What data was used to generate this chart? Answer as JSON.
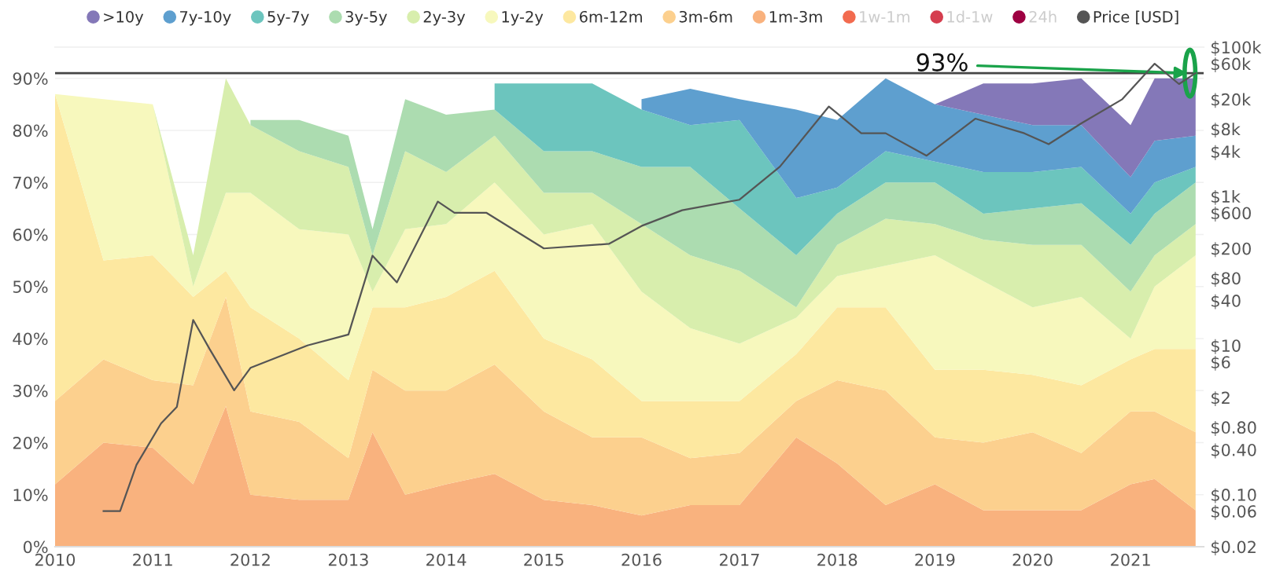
{
  "chart_data": {
    "type": "area",
    "stacked": true,
    "x": [
      "2010-01",
      "2010-07",
      "2011-01",
      "2011-06",
      "2011-10",
      "2012-01",
      "2012-07",
      "2013-01",
      "2013-04",
      "2013-08",
      "2014-01",
      "2014-07",
      "2015-01",
      "2015-07",
      "2016-01",
      "2016-07",
      "2017-01",
      "2017-08",
      "2018-01",
      "2018-07",
      "2019-01",
      "2019-07",
      "2020-01",
      "2020-07",
      "2021-01",
      "2021-04",
      "2021-09"
    ],
    "series": [
      {
        "name": ">10y",
        "color": "#8478b8",
        "values": [
          null,
          null,
          null,
          null,
          null,
          null,
          null,
          null,
          null,
          null,
          null,
          null,
          null,
          null,
          null,
          null,
          null,
          null,
          null,
          null,
          0,
          6,
          8,
          9,
          10,
          12,
          11
        ]
      },
      {
        "name": "7y-10y",
        "color": "#5e9fcf",
        "values": [
          null,
          null,
          null,
          null,
          null,
          null,
          null,
          null,
          null,
          null,
          null,
          null,
          null,
          null,
          2,
          7,
          4,
          17,
          13,
          14,
          11,
          11,
          9,
          8,
          7,
          8,
          6
        ]
      },
      {
        "name": "5y-7y",
        "color": "#6cc5be",
        "values": [
          null,
          null,
          null,
          null,
          null,
          null,
          null,
          null,
          null,
          null,
          null,
          5,
          13,
          13,
          11,
          8,
          17,
          11,
          5,
          6,
          4,
          8,
          7,
          7,
          6,
          6,
          3
        ]
      },
      {
        "name": "3y-5y",
        "color": "#acdcb0",
        "values": [
          null,
          null,
          null,
          null,
          null,
          1,
          6,
          6,
          5,
          10,
          11,
          5,
          8,
          8,
          11,
          17,
          12,
          10,
          6,
          7,
          8,
          5,
          7,
          8,
          9,
          8,
          8
        ]
      },
      {
        "name": "2y-3y",
        "color": "#d8eead",
        "values": [
          null,
          null,
          0,
          6,
          22,
          13,
          15,
          13,
          7,
          15,
          10,
          9,
          8,
          6,
          13,
          14,
          14,
          2,
          6,
          9,
          6,
          8,
          12,
          10,
          9,
          6,
          6
        ]
      },
      {
        "name": "1y-2y",
        "color": "#f7f8bd",
        "values": [
          0,
          31,
          29,
          2,
          15,
          22,
          21,
          28,
          3,
          15,
          14,
          17,
          20,
          26,
          21,
          14,
          11,
          7,
          6,
          8,
          22,
          17,
          13,
          17,
          4,
          12,
          18
        ]
      },
      {
        "name": "6m-12m",
        "color": "#fde8a0",
        "values": [
          59,
          19,
          24,
          17,
          5,
          20,
          16,
          15,
          12,
          16,
          18,
          18,
          14,
          15,
          7,
          11,
          10,
          9,
          14,
          16,
          13,
          14,
          11,
          13,
          10,
          12,
          16
        ]
      },
      {
        "name": "3m-6m",
        "color": "#fcd08e",
        "values": [
          16,
          16,
          13,
          19,
          21,
          16,
          15,
          8,
          12,
          20,
          18,
          21,
          17,
          13,
          15,
          9,
          10,
          7,
          16,
          22,
          9,
          13,
          15,
          11,
          14,
          13,
          15
        ]
      },
      {
        "name": "1m-3m",
        "color": "#f9b27e",
        "values": [
          12,
          20,
          19,
          12,
          27,
          10,
          9,
          9,
          22,
          10,
          12,
          14,
          9,
          8,
          6,
          8,
          8,
          21,
          16,
          8,
          12,
          7,
          7,
          7,
          12,
          13,
          7
        ]
      },
      {
        "name": "1w-1m",
        "color": "#f26b4f",
        "values": [
          null,
          null,
          null,
          null,
          null,
          null,
          null,
          null,
          null,
          null,
          null,
          null,
          null,
          null,
          null,
          null,
          null,
          null,
          null,
          null,
          null,
          null,
          null,
          null,
          null,
          null,
          null
        ]
      },
      {
        "name": "1d-1w",
        "color": "#d53e4f",
        "values": [
          null,
          null,
          null,
          null,
          null,
          null,
          null,
          null,
          null,
          null,
          null,
          null,
          null,
          null,
          null,
          null,
          null,
          null,
          null,
          null,
          null,
          null,
          null,
          null,
          null,
          null,
          null
        ]
      },
      {
        "name": "24h",
        "color": "#9e0142",
        "values": [
          null,
          null,
          null,
          null,
          null,
          null,
          null,
          null,
          null,
          null,
          null,
          null,
          null,
          null,
          null,
          null,
          null,
          null,
          null,
          null,
          null,
          null,
          null,
          null,
          null,
          null,
          null
        ]
      },
      {
        "name": "Price [USD]",
        "type": "line",
        "axis": "y2",
        "color": "#555555",
        "x": [
          "2010-07",
          "2010-09",
          "2010-11",
          "2011-02",
          "2011-04",
          "2011-06",
          "2011-08",
          "2011-11",
          "2012-01",
          "2012-08",
          "2013-01",
          "2013-04",
          "2013-07",
          "2013-12",
          "2014-02",
          "2014-06",
          "2015-01",
          "2015-09",
          "2016-01",
          "2016-06",
          "2017-01",
          "2017-06",
          "2017-12",
          "2018-04",
          "2018-07",
          "2018-12",
          "2019-06",
          "2019-12",
          "2020-03",
          "2020-07",
          "2020-12",
          "2021-04",
          "2021-07",
          "2021-09"
        ],
        "values": [
          0.06,
          0.06,
          0.25,
          0.9,
          1.5,
          22,
          9,
          2.5,
          5,
          10,
          14,
          160,
          70,
          850,
          600,
          600,
          200,
          230,
          400,
          650,
          900,
          2500,
          16000,
          7000,
          7000,
          3500,
          11000,
          7000,
          5000,
          9500,
          20000,
          60000,
          32000,
          45000
        ]
      }
    ],
    "xlim": [
      "2010-01",
      "2021-10"
    ],
    "xticks": [
      {
        "value": "2010",
        "label": "2010"
      },
      {
        "value": "2011",
        "label": "2011"
      },
      {
        "value": "2012",
        "label": "2012"
      },
      {
        "value": "2013",
        "label": "2013"
      },
      {
        "value": "2014",
        "label": "2014"
      },
      {
        "value": "2015",
        "label": "2015"
      },
      {
        "value": "2016",
        "label": "2016"
      },
      {
        "value": "2017",
        "label": "2017"
      },
      {
        "value": "2018",
        "label": "2018"
      },
      {
        "value": "2019",
        "label": "2019"
      },
      {
        "value": "2020",
        "label": "2020"
      },
      {
        "value": "2021",
        "label": "2021"
      }
    ],
    "ylim": [
      0,
      96
    ],
    "yticks": [
      {
        "value": 0,
        "label": "0%"
      },
      {
        "value": 10,
        "label": "10%"
      },
      {
        "value": 20,
        "label": "20%"
      },
      {
        "value": 30,
        "label": "30%"
      },
      {
        "value": 40,
        "label": "40%"
      },
      {
        "value": 50,
        "label": "50%"
      },
      {
        "value": 60,
        "label": "60%"
      },
      {
        "value": 70,
        "label": "70%"
      },
      {
        "value": 80,
        "label": "80%"
      },
      {
        "value": 90,
        "label": "90%"
      }
    ],
    "log": "y2",
    "y2lim": [
      0.02,
      100000
    ],
    "y2ticks": [
      {
        "value": 100000,
        "label": "$100k"
      },
      {
        "value": 60000,
        "label": "$60k"
      },
      {
        "value": 20000,
        "label": "$20k"
      },
      {
        "value": 8000,
        "label": "$8k"
      },
      {
        "value": 4000,
        "label": "$4k"
      },
      {
        "value": 1000,
        "label": "$1k"
      },
      {
        "value": 600,
        "label": "$600"
      },
      {
        "value": 200,
        "label": "$200"
      },
      {
        "value": 80,
        "label": "$80"
      },
      {
        "value": 40,
        "label": "$40"
      },
      {
        "value": 10,
        "label": "$10"
      },
      {
        "value": 6,
        "label": "$6"
      },
      {
        "value": 2,
        "label": "$2"
      },
      {
        "value": 0.8,
        "label": "$0.80"
      },
      {
        "value": 0.4,
        "label": "$0.40"
      },
      {
        "value": 0.1,
        "label": "$0.10"
      },
      {
        "value": 0.06,
        "label": "$0.06"
      },
      {
        "value": 0.02,
        "label": "$0.02"
      }
    ],
    "ref_lines": [
      {
        "axis": "y",
        "value": 91,
        "label": null,
        "color": "#444444"
      }
    ],
    "annotations": [
      {
        "text": "93%",
        "x": "2021-08",
        "y": 91
      }
    ],
    "grid": "y",
    "legend": "top"
  }
}
